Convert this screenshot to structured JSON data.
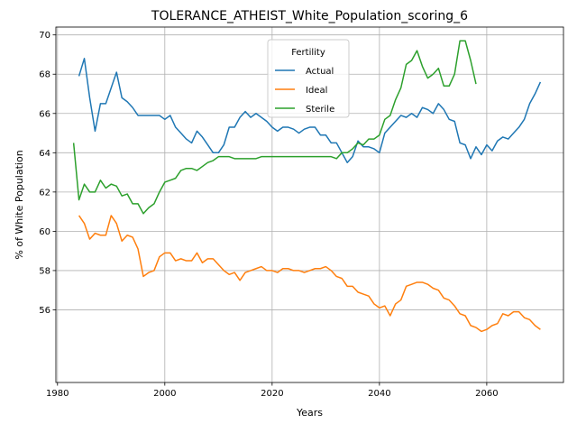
{
  "chart_data": {
    "type": "line",
    "title": "TOLERANCE_ATHEIST_White_Population_scoring_6",
    "xlabel": "Years",
    "ylabel": "% of White Population",
    "xlim": [
      1979.7,
      2074.3
    ],
    "ylim": [
      52.3,
      70.4
    ],
    "xticks": [
      1980,
      2000,
      2020,
      2040,
      2060
    ],
    "yticks": [
      56,
      58,
      60,
      62,
      64,
      66,
      68,
      70
    ],
    "grid": true,
    "legend": {
      "title": "Fertility",
      "placement": "upper center"
    },
    "series": [
      {
        "name": "Actual",
        "color": "#1f77b4",
        "x": [
          1984,
          1985,
          1986,
          1987,
          1988,
          1989,
          1990,
          1991,
          1992,
          1993,
          1994,
          1995,
          1996,
          1997,
          1998,
          1999,
          2000,
          2001,
          2002,
          2003,
          2004,
          2005,
          2006,
          2007,
          2008,
          2009,
          2010,
          2011,
          2012,
          2013,
          2014,
          2015,
          2016,
          2017,
          2018,
          2019,
          2020,
          2021,
          2022,
          2023,
          2024,
          2025,
          2026,
          2027,
          2028,
          2029,
          2030,
          2031,
          2032,
          2033,
          2034,
          2035,
          2036,
          2037,
          2038,
          2039,
          2040,
          2041,
          2042,
          2043,
          2044,
          2045,
          2046,
          2047,
          2048,
          2049,
          2050,
          2051,
          2052,
          2053,
          2054,
          2055,
          2056,
          2057,
          2058,
          2059,
          2060,
          2061,
          2062,
          2063,
          2064,
          2065,
          2066,
          2067,
          2068,
          2069,
          2070
        ],
        "values": [
          67.9,
          68.8,
          66.8,
          65.1,
          66.5,
          66.5,
          67.3,
          68.1,
          66.8,
          66.6,
          66.3,
          65.9,
          65.9,
          65.9,
          65.9,
          65.9,
          65.7,
          65.9,
          65.3,
          65.0,
          64.7,
          64.5,
          65.1,
          64.8,
          64.4,
          64.0,
          64.0,
          64.4,
          65.3,
          65.3,
          65.8,
          66.1,
          65.8,
          66.0,
          65.8,
          65.6,
          65.3,
          65.1,
          65.3,
          65.3,
          65.2,
          65.0,
          65.2,
          65.3,
          65.3,
          64.9,
          64.9,
          64.5,
          64.5,
          64.0,
          63.5,
          63.8,
          64.6,
          64.3,
          64.3,
          64.2,
          64.0,
          65.0,
          65.3,
          65.6,
          65.9,
          65.8,
          66.0,
          65.8,
          66.3,
          66.2,
          66.0,
          66.5,
          66.2,
          65.7,
          65.6,
          64.5,
          64.4,
          63.7,
          64.3,
          63.9,
          64.4,
          64.1,
          64.6,
          64.8,
          64.7,
          65.0,
          65.3,
          65.7,
          66.5,
          67.0,
          67.6
        ]
      },
      {
        "name": "Ideal",
        "color": "#ff7f0e",
        "x": [
          1984,
          1985,
          1986,
          1987,
          1988,
          1989,
          1990,
          1991,
          1992,
          1993,
          1994,
          1995,
          1996,
          1997,
          1998,
          1999,
          2000,
          2001,
          2002,
          2003,
          2004,
          2005,
          2006,
          2007,
          2008,
          2009,
          2010,
          2011,
          2012,
          2013,
          2014,
          2015,
          2016,
          2017,
          2018,
          2019,
          2020,
          2021,
          2022,
          2023,
          2024,
          2025,
          2026,
          2027,
          2028,
          2029,
          2030,
          2031,
          2032,
          2033,
          2034,
          2035,
          2036,
          2037,
          2038,
          2039,
          2040,
          2041,
          2042,
          2043,
          2044,
          2045,
          2046,
          2047,
          2048,
          2049,
          2050,
          2051,
          2052,
          2053,
          2054,
          2055,
          2056,
          2057,
          2058,
          2059,
          2060,
          2061,
          2062,
          2063,
          2064,
          2065,
          2066,
          2067,
          2068,
          2069,
          2070
        ],
        "values": [
          60.8,
          60.4,
          59.6,
          59.9,
          59.8,
          59.8,
          60.8,
          60.4,
          59.5,
          59.8,
          59.7,
          59.1,
          57.7,
          57.9,
          58.0,
          58.7,
          58.9,
          58.9,
          58.5,
          58.6,
          58.5,
          58.5,
          58.9,
          58.4,
          58.6,
          58.6,
          58.3,
          58.0,
          57.8,
          57.9,
          57.5,
          57.9,
          58.0,
          58.1,
          58.2,
          58.0,
          58.0,
          57.9,
          58.1,
          58.1,
          58.0,
          58.0,
          57.9,
          58.0,
          58.1,
          58.1,
          58.2,
          58.0,
          57.7,
          57.6,
          57.2,
          57.2,
          56.9,
          56.8,
          56.7,
          56.3,
          56.1,
          56.2,
          55.7,
          56.3,
          56.5,
          57.2,
          57.3,
          57.4,
          57.4,
          57.3,
          57.1,
          57.0,
          56.6,
          56.5,
          56.2,
          55.8,
          55.7,
          55.2,
          55.1,
          54.9,
          55.0,
          55.2,
          55.3,
          55.8,
          55.7,
          55.9,
          55.9,
          55.6,
          55.5,
          55.2,
          55.0
        ]
      },
      {
        "name": "Sterile",
        "color": "#2ca02c",
        "x": [
          1983,
          1984,
          1985,
          1986,
          1987,
          1988,
          1989,
          1990,
          1991,
          1992,
          1993,
          1994,
          1995,
          1996,
          1997,
          1998,
          1999,
          2000,
          2001,
          2002,
          2003,
          2004,
          2005,
          2006,
          2007,
          2008,
          2009,
          2010,
          2011,
          2012,
          2013,
          2014,
          2015,
          2016,
          2017,
          2018,
          2019,
          2020,
          2021,
          2022,
          2023,
          2024,
          2025,
          2026,
          2027,
          2028,
          2029,
          2030,
          2031,
          2032,
          2033,
          2034,
          2035,
          2036,
          2037,
          2038,
          2039,
          2040,
          2041,
          2042,
          2043,
          2044,
          2045,
          2046,
          2047,
          2048,
          2049,
          2050,
          2051,
          2052,
          2053,
          2054,
          2055,
          2056,
          2057,
          2058
        ],
        "values": [
          64.5,
          61.6,
          62.4,
          62.0,
          62.0,
          62.6,
          62.2,
          62.4,
          62.3,
          61.8,
          61.9,
          61.4,
          61.4,
          60.9,
          61.2,
          61.4,
          62.0,
          62.5,
          62.6,
          62.7,
          63.1,
          63.2,
          63.2,
          63.1,
          63.3,
          63.5,
          63.6,
          63.8,
          63.8,
          63.8,
          63.7,
          63.7,
          63.7,
          63.7,
          63.7,
          63.8,
          63.8,
          63.8,
          63.8,
          63.8,
          63.8,
          63.8,
          63.8,
          63.8,
          63.8,
          63.8,
          63.8,
          63.8,
          63.8,
          63.7,
          64.0,
          64.0,
          64.2,
          64.5,
          64.4,
          64.7,
          64.7,
          64.9,
          65.7,
          65.9,
          66.7,
          67.3,
          68.5,
          68.7,
          69.2,
          68.4,
          67.8,
          68.0,
          68.3,
          67.4,
          67.4,
          68.0,
          69.7,
          69.7,
          68.7,
          67.5
        ]
      }
    ]
  }
}
